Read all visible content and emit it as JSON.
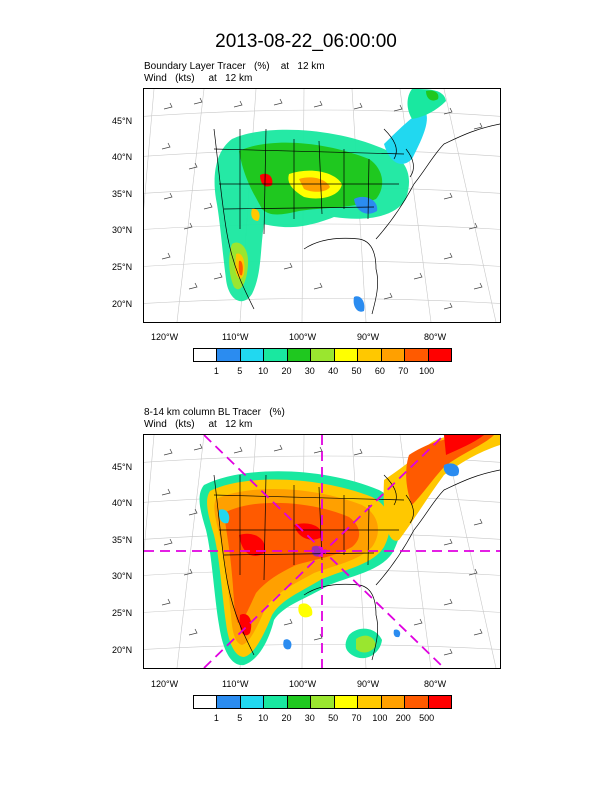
{
  "title": "2013-08-22_06:00:00",
  "panels": [
    {
      "label_line1": "Boundary Layer Tracer   (%)    at   12 km",
      "label_line2": "Wind   (kts)     at   12 km",
      "colorbar": {
        "labels": [
          "1",
          "5",
          "10",
          "20",
          "30",
          "40",
          "50",
          "60",
          "70",
          "100"
        ],
        "colors": [
          "#ffffff",
          "#2b8cf0",
          "#21d8f0",
          "#19e8a0",
          "#1fc81f",
          "#9ae62f",
          "#ffff00",
          "#ffc800",
          "#ffa000",
          "#ff5a00",
          "#ff0000"
        ]
      }
    },
    {
      "label_line1": "8-14 km column BL Tracer   (%)",
      "label_line2": "Wind   (kts)     at   12 km",
      "colorbar": {
        "labels": [
          "1",
          "5",
          "10",
          "20",
          "30",
          "50",
          "70",
          "100",
          "200",
          "500"
        ],
        "colors": [
          "#ffffff",
          "#2b8cf0",
          "#21d8f0",
          "#19e8a0",
          "#1fc81f",
          "#9ae62f",
          "#ffff00",
          "#ffc800",
          "#ffa000",
          "#ff5a00",
          "#ff0000"
        ]
      }
    }
  ],
  "axes": {
    "lat_labels": [
      "45°N",
      "40°N",
      "35°N",
      "30°N",
      "25°N",
      "20°N"
    ],
    "lon_labels": [
      "120°W",
      "110°W",
      "100°W",
      "90°W",
      "80°W"
    ]
  },
  "overlay_color": "#e000e0"
}
